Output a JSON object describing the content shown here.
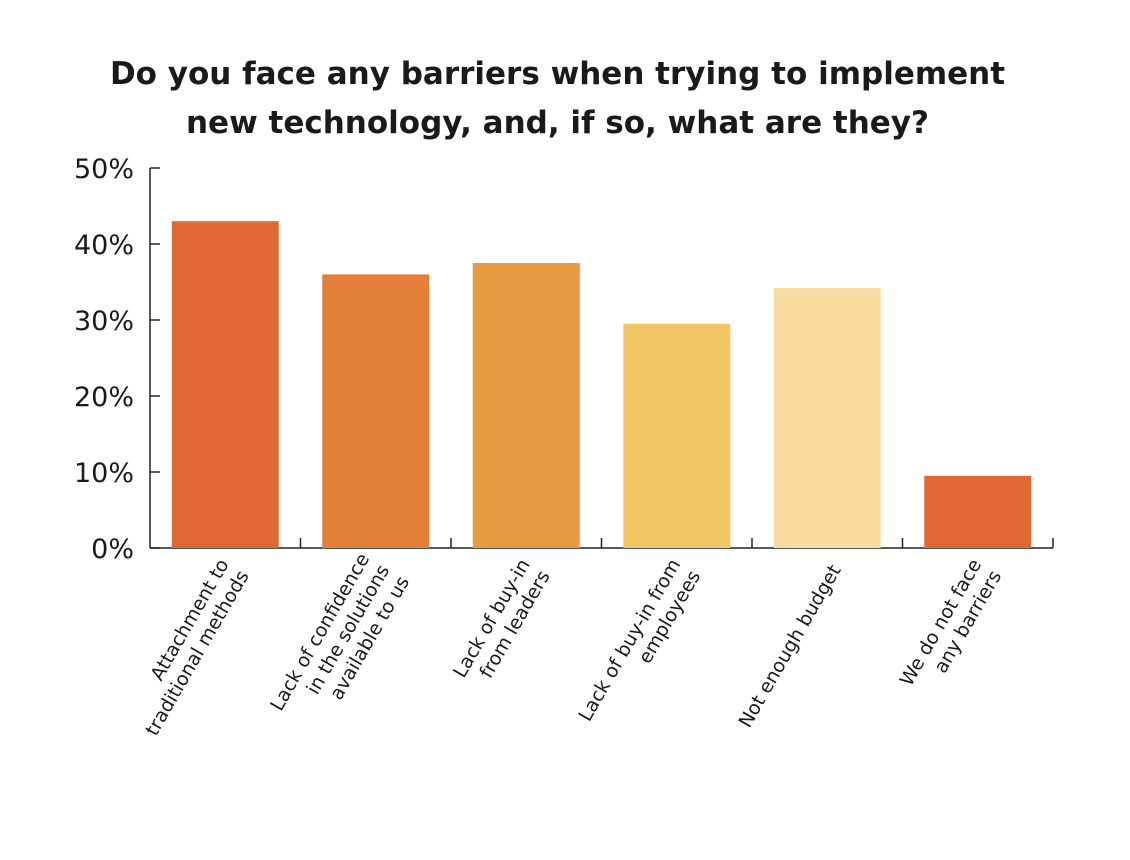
{
  "chart_data": {
    "type": "bar",
    "title_lines": [
      "Do you face any barriers when trying to implement",
      "new technology, and, if so, what are they?"
    ],
    "categories": [
      [
        "Attachment to",
        "traditional methods"
      ],
      [
        "Lack of confidence",
        "in the solutions",
        "available to us"
      ],
      [
        "Lack of buy-in",
        "from leaders"
      ],
      [
        "Lack of buy-in from",
        "employees"
      ],
      [
        "Not enough budget"
      ],
      [
        "We do not face",
        "any barriers"
      ]
    ],
    "values": [
      43,
      36,
      37.5,
      29.5,
      34.2,
      9.5
    ],
    "bar_colors": [
      "#e06834",
      "#e47f3a",
      "#e79a40",
      "#f2c662",
      "#f7dba0",
      "#e06834"
    ],
    "ylim": [
      0,
      50
    ],
    "yticks": [
      0,
      10,
      20,
      30,
      40,
      50
    ],
    "ytick_labels": [
      "0%",
      "10%",
      "20%",
      "30%",
      "40%",
      "50%"
    ],
    "xlabel": "",
    "ylabel": "",
    "grid": false,
    "legend": "none"
  }
}
